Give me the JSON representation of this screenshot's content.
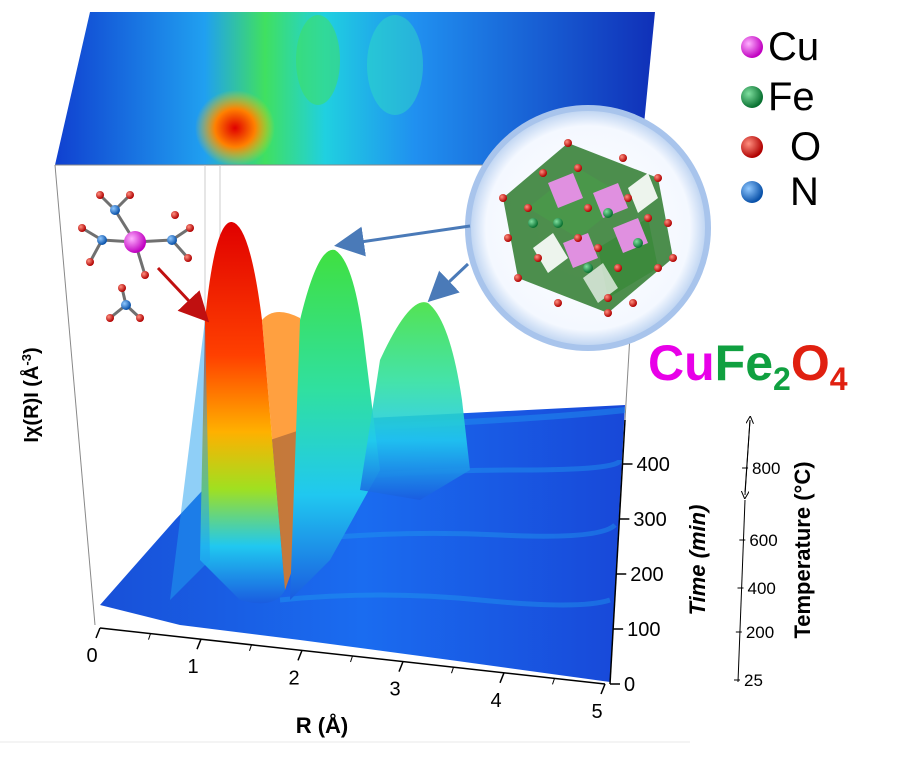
{
  "chart_data": {
    "type": "surface3d",
    "title": "",
    "xlabel": "R (Å)",
    "ylabel_prefix": "Iχ(R)I (Å",
    "ylabel_sup": "-3",
    "ylabel_suffix": ")",
    "zlabel": "Time (min)",
    "temp_label": "Temperature (°C)",
    "x_ticks": [
      "0",
      "1",
      "2",
      "3",
      "4",
      "5"
    ],
    "xlim": [
      0,
      5
    ],
    "time_ticks": [
      "0",
      "100",
      "200",
      "300",
      "400"
    ],
    "time_lim": [
      0,
      480
    ],
    "temp_ticks": [
      "25",
      "200",
      "400",
      "600",
      "800"
    ],
    "peaks_R": [
      1.45,
      2.5,
      3.3
    ],
    "colormap": [
      "#1030c8",
      "#1a6cf0",
      "#20c8f0",
      "#30e070",
      "#a0e020",
      "#ffd000",
      "#ff6000",
      "#e00000"
    ],
    "legend": [
      {
        "label": "Cu",
        "color": "#e040e0"
      },
      {
        "label": "Fe",
        "color": "#10a040"
      },
      {
        "label": "O",
        "color": "#e01010"
      },
      {
        "label": "N",
        "color": "#1878d8"
      }
    ],
    "compound": {
      "el1": "Cu",
      "el2": "Fe",
      "sub2": "2",
      "el3": "O",
      "sub3": "4"
    },
    "colors": {
      "cu": "#e800e8",
      "fe": "#10a040",
      "o": "#e02010"
    }
  }
}
